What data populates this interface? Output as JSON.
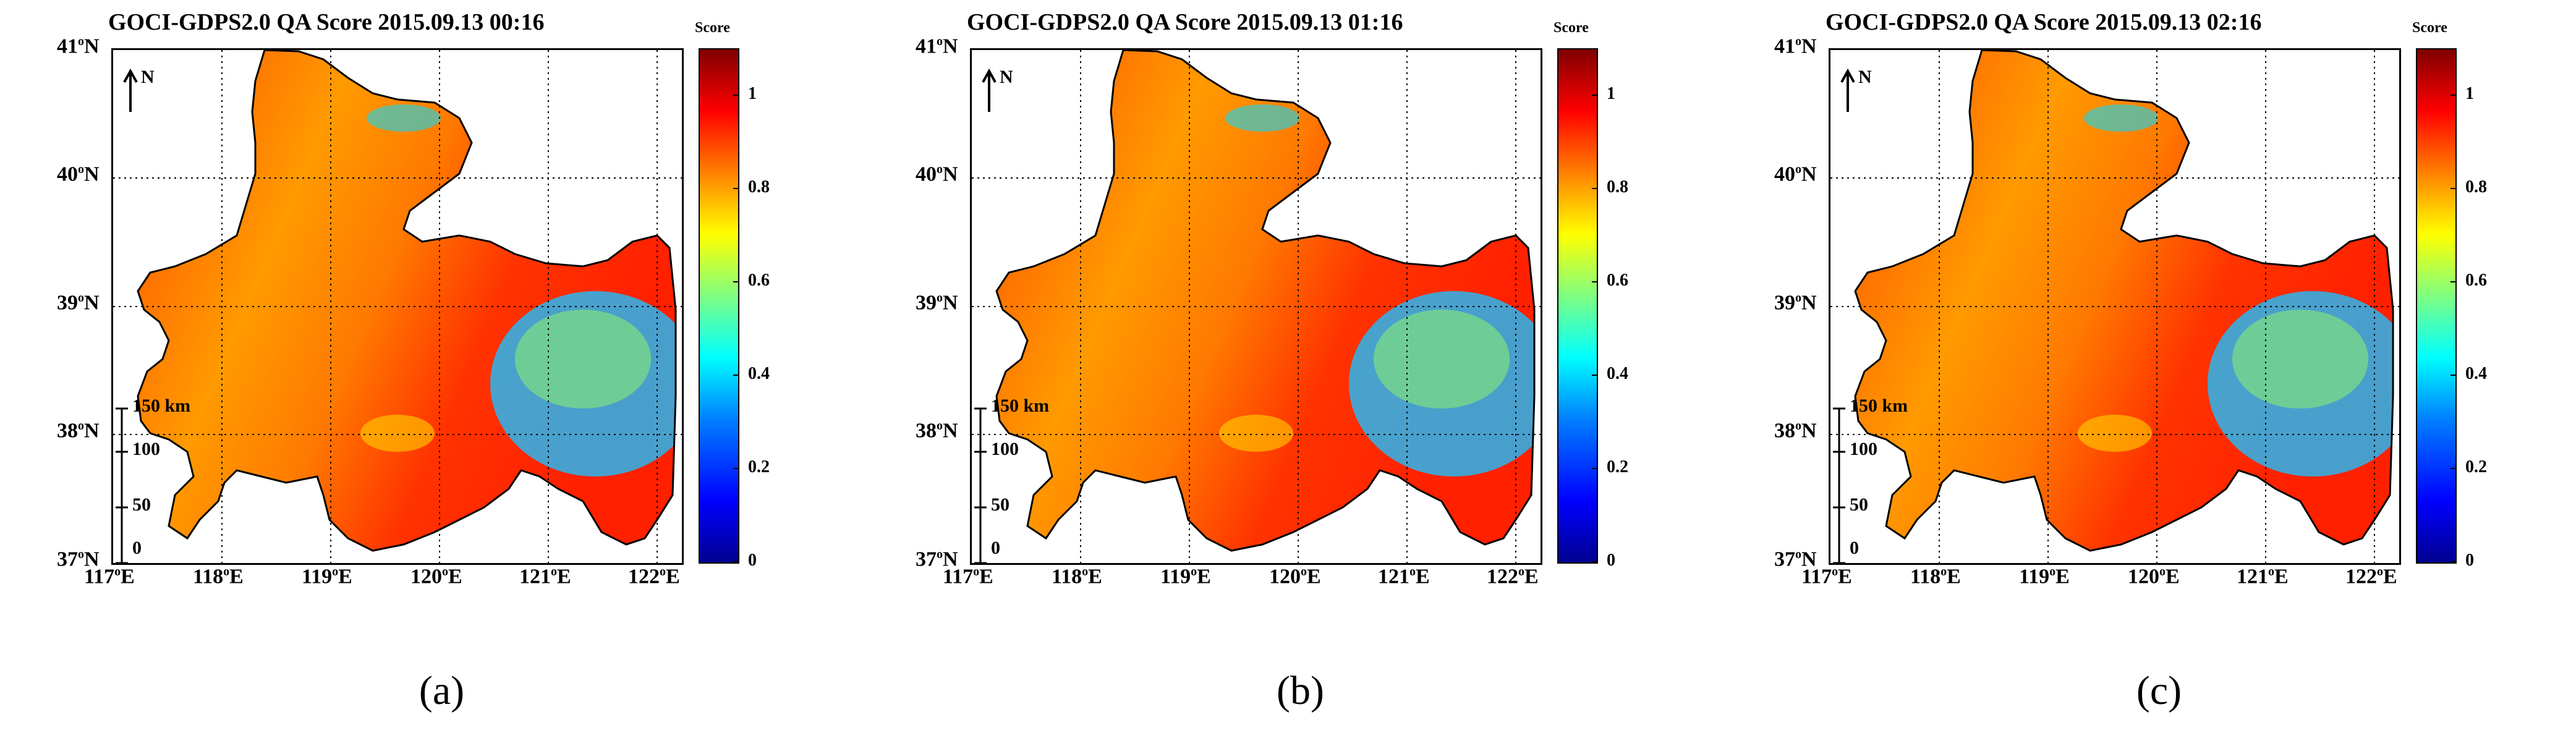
{
  "figure": {
    "colorbar_title": "Score",
    "colorbar_ticks": [
      "0",
      "0.2",
      "0.4",
      "0.6",
      "0.8",
      "1"
    ],
    "colorbar_range": [
      0,
      1.1
    ],
    "lat_labels": [
      {
        "deg": "41",
        "hem": "N"
      },
      {
        "deg": "40",
        "hem": "N"
      },
      {
        "deg": "39",
        "hem": "N"
      },
      {
        "deg": "38",
        "hem": "N"
      },
      {
        "deg": "37",
        "hem": "N"
      }
    ],
    "lon_labels": [
      {
        "deg": "117",
        "hem": "E"
      },
      {
        "deg": "118",
        "hem": "E"
      },
      {
        "deg": "119",
        "hem": "E"
      },
      {
        "deg": "120",
        "hem": "E"
      },
      {
        "deg": "121",
        "hem": "E"
      },
      {
        "deg": "122",
        "hem": "E"
      }
    ],
    "north_label": "N",
    "scale": {
      "unit_label": "150 km",
      "ticks": [
        "100",
        "50",
        "0"
      ]
    },
    "colors": {
      "sea_high": "#ff2a00",
      "sea_mid": "#ff9500",
      "low_score": "#29b6f0",
      "land": "#ffffff",
      "coast": "#000000"
    }
  },
  "panels": [
    {
      "title": "GOCI-GDPS2.0 QA Score 2015.09.13 00:16",
      "label": "(a)"
    },
    {
      "title": "GOCI-GDPS2.0 QA Score 2015.09.13 01:16",
      "label": "(b)"
    },
    {
      "title": "GOCI-GDPS2.0 QA Score 2015.09.13 02:16",
      "label": "(c)"
    }
  ]
}
